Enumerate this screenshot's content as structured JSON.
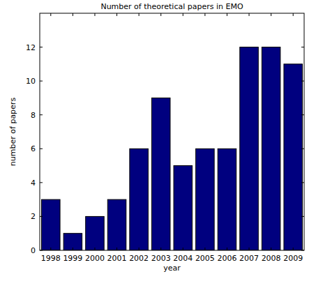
{
  "chart_data": {
    "type": "bar",
    "title": "Number of theoretical papers in EMO",
    "x_label": "year",
    "y_label": "number of papers",
    "categories": [
      "1998",
      "1999",
      "2000",
      "2001",
      "2002",
      "2003",
      "2004",
      "2005",
      "2006",
      "2007",
      "2008",
      "2009"
    ],
    "values": [
      3,
      1,
      2,
      3,
      6,
      9,
      5,
      6,
      6,
      12,
      12,
      11
    ],
    "color": "#00007f",
    "ylim": [
      0,
      14
    ],
    "yticks": [
      0,
      2,
      4,
      6,
      8,
      10,
      12
    ],
    "grid": false
  }
}
